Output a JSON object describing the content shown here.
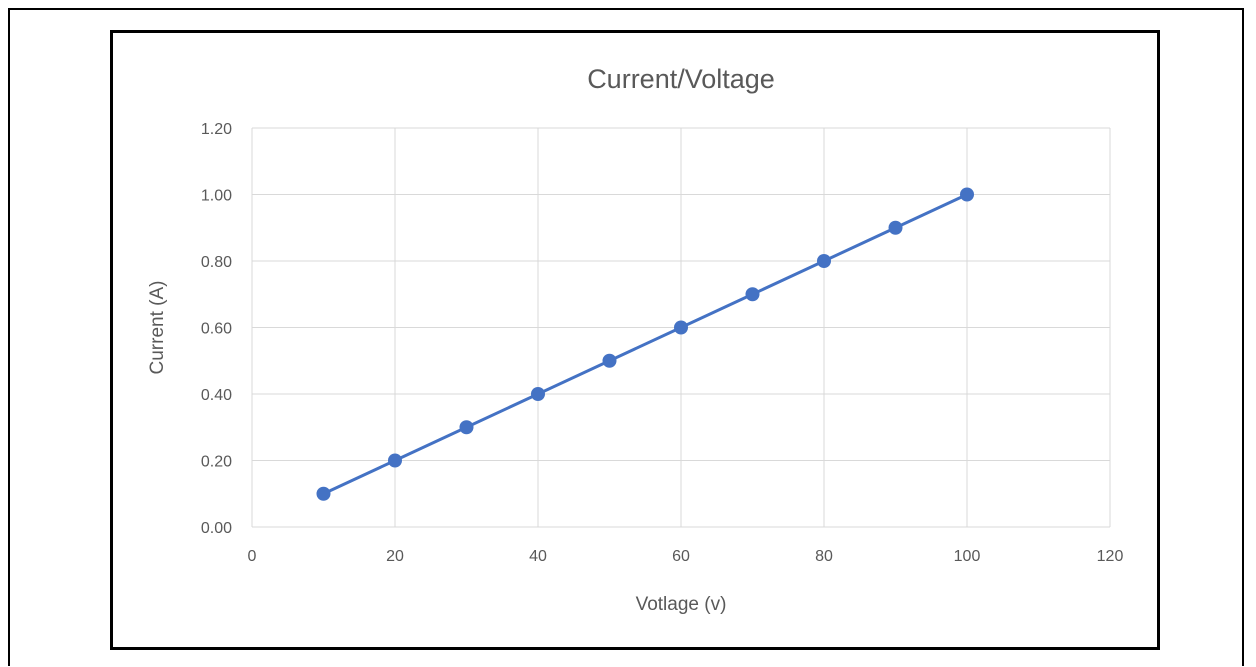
{
  "chart_data": {
    "type": "scatter",
    "title": "Current/Voltage",
    "xlabel": "Votlage (v)",
    "ylabel": "Current (A)",
    "xlim": [
      0,
      120
    ],
    "ylim": [
      0,
      1.2
    ],
    "xticks": [
      "0",
      "20",
      "40",
      "60",
      "80",
      "100",
      "120"
    ],
    "yticks": [
      "0.00",
      "0.20",
      "0.40",
      "0.60",
      "0.80",
      "1.00",
      "1.20"
    ],
    "grid": true,
    "legend": "none",
    "series": [
      {
        "color": "#4472C4",
        "marker": "circle",
        "line": "straight",
        "x": [
          10,
          20,
          30,
          40,
          50,
          60,
          70,
          80,
          90,
          100
        ],
        "y": [
          0.1,
          0.2,
          0.3,
          0.4,
          0.5,
          0.6,
          0.7,
          0.8,
          0.9,
          1.0
        ]
      }
    ]
  }
}
